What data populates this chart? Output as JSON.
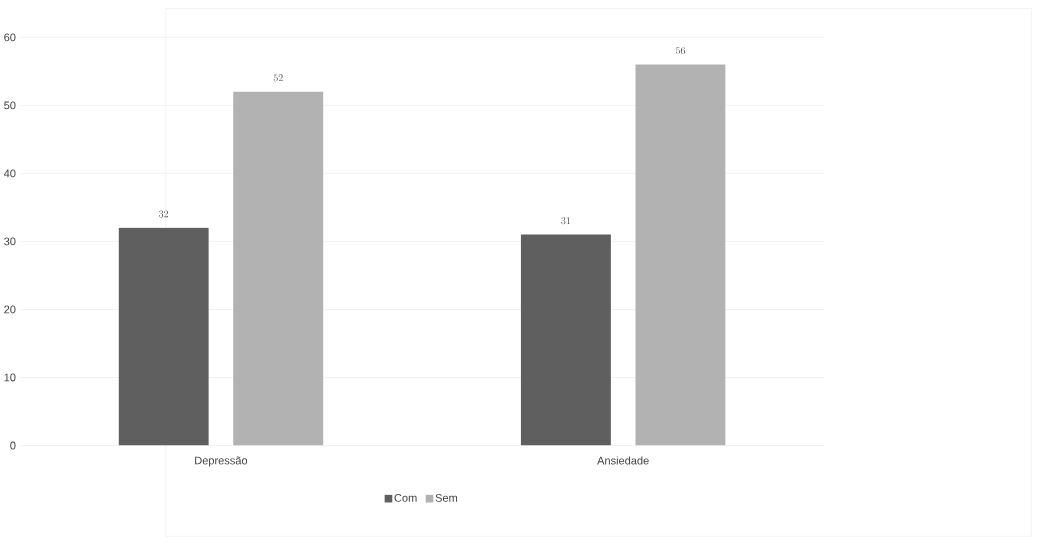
{
  "chart_data": {
    "type": "bar",
    "categories": [
      "Depressão",
      "Ansiedade"
    ],
    "series": [
      {
        "name": "Com",
        "color": "#5f5f5f",
        "values": [
          32,
          31
        ]
      },
      {
        "name": "Sem",
        "color": "#b2b2b2",
        "values": [
          52,
          56
        ]
      }
    ],
    "ylim": [
      0,
      60
    ],
    "yticks": [
      0,
      10,
      20,
      30,
      40,
      50,
      60
    ],
    "grid": "y",
    "legend": "bottom",
    "data_labels": true
  }
}
